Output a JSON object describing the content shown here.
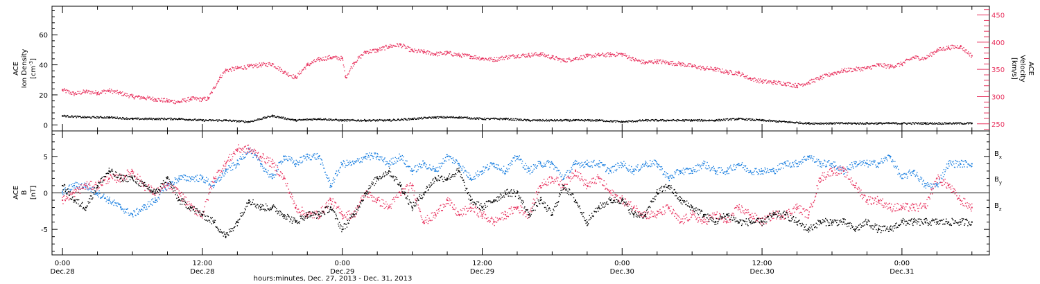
{
  "figure": {
    "xaxis_title": "hours:minutes, Dec. 27, 2013 - Dec. 31, 2013",
    "tick_times": [
      "0:00",
      "12:00",
      "0:00",
      "12:00",
      "0:00",
      "12:00",
      "0:00"
    ],
    "tick_dates": [
      "Dec.28",
      "Dec.28",
      "Dec.29",
      "Dec.29",
      "Dec.30",
      "Dec.30",
      "Dec.31"
    ]
  },
  "colors": {
    "black": "#000000",
    "red": "#e8335f",
    "blue": "#1a7fe0"
  },
  "chart_data": [
    {
      "type": "scatter",
      "panel": "top",
      "xlabel": "hours:minutes, Dec. 27, 2013 - Dec. 31, 2013",
      "x_unit": "hours since Dec.28 0:00",
      "xlim": [
        -0.9,
        79.5
      ],
      "xticks": [
        0,
        12,
        24,
        36,
        48,
        60,
        72
      ],
      "left_axis": {
        "label_line1": "ACE",
        "label_line2": "Ion Density",
        "label_line3": "[cm^-3]",
        "ylim": [
          -4,
          79
        ],
        "ticks": [
          0,
          20,
          40,
          60
        ]
      },
      "right_axis": {
        "label_line1": "ACE",
        "label_line2": "Velocity",
        "label_line3": "[km/s]",
        "ylim": [
          237,
          466
        ],
        "ticks": [
          250,
          300,
          350,
          400,
          450
        ]
      },
      "series": [
        {
          "name": "Velocity",
          "axis": "right",
          "color": "#e8335f",
          "x": [
            0,
            1,
            2,
            3,
            4,
            5,
            6,
            7,
            8,
            9,
            10,
            11,
            12,
            12.5,
            13.5,
            14,
            15,
            16,
            17,
            18,
            19,
            20,
            21,
            22,
            23,
            24,
            24.3,
            25,
            26,
            27,
            28,
            29,
            30,
            31,
            32,
            33,
            34,
            35,
            36,
            37,
            38,
            39,
            40,
            41,
            42,
            43,
            44,
            45,
            46,
            47,
            48,
            49,
            50,
            51,
            52,
            53,
            54,
            55,
            56,
            57,
            58,
            59,
            60,
            61,
            62,
            63,
            64,
            65,
            66,
            67,
            68,
            69,
            70,
            71,
            72,
            73,
            74,
            75,
            76,
            77,
            78
          ],
          "values": [
            312,
            305,
            309,
            307,
            311,
            306,
            300,
            298,
            295,
            292,
            290,
            296,
            295,
            296,
            335,
            348,
            352,
            355,
            358,
            360,
            345,
            335,
            358,
            368,
            372,
            370,
            335,
            362,
            382,
            385,
            392,
            395,
            384,
            382,
            378,
            380,
            376,
            374,
            370,
            368,
            372,
            375,
            376,
            378,
            372,
            366,
            370,
            374,
            376,
            377,
            378,
            368,
            362,
            365,
            362,
            360,
            356,
            352,
            350,
            345,
            343,
            333,
            328,
            326,
            324,
            320,
            326,
            334,
            342,
            348,
            350,
            352,
            358,
            355,
            360,
            372,
            370,
            385,
            390,
            392,
            375
          ]
        },
        {
          "name": "Ion Density",
          "axis": "left",
          "color": "#000000",
          "x": [
            0,
            2,
            4,
            6,
            8,
            10,
            12,
            14,
            16,
            18,
            20,
            22,
            24,
            26,
            28,
            30,
            32,
            34,
            36,
            38,
            40,
            42,
            44,
            46,
            48,
            50,
            52,
            54,
            56,
            58,
            60,
            62,
            64,
            66,
            68,
            70,
            72,
            74,
            76,
            78
          ],
          "values": [
            6,
            5,
            5,
            4,
            4,
            4,
            3,
            3,
            2,
            6,
            3,
            4,
            3,
            3,
            3,
            4,
            5,
            5,
            4,
            4,
            3,
            3,
            3,
            3,
            2,
            3,
            3,
            3,
            3,
            4,
            3,
            2,
            1,
            1,
            1,
            1,
            1,
            1,
            1,
            1
          ]
        }
      ]
    },
    {
      "type": "scatter",
      "panel": "bottom",
      "x_unit": "hours since Dec.28 0:00",
      "xlim": [
        -0.9,
        79.5
      ],
      "ylabel_line1": "ACE",
      "ylabel_line2": "B",
      "ylabel_line3": "[nT]",
      "ylim": [
        -8.5,
        8.5
      ],
      "yticks": [
        -5,
        0,
        5
      ],
      "zero_line": true,
      "series": [
        {
          "name": "B_x",
          "color": "#000000",
          "x": [
            0,
            1,
            2,
            3,
            4,
            5,
            6,
            7,
            8,
            9,
            10,
            11,
            12,
            13,
            14,
            15,
            16,
            17,
            18,
            19,
            20,
            21,
            22,
            23,
            24,
            25,
            26,
            27,
            28,
            29,
            30,
            31,
            32,
            33,
            34,
            35,
            36,
            37,
            38,
            39,
            40,
            41,
            42,
            43,
            44,
            45,
            46,
            47,
            48,
            49,
            50,
            51,
            52,
            53,
            54,
            55,
            56,
            57,
            58,
            59,
            60,
            61,
            62,
            63,
            64,
            65,
            66,
            67,
            68,
            69,
            70,
            71,
            72,
            73,
            74,
            75,
            76,
            77,
            78
          ],
          "values": [
            1,
            -1,
            -2,
            1,
            3,
            2,
            2,
            1,
            0,
            2,
            -1,
            -2,
            -3,
            -4,
            -6,
            -4,
            -1,
            -2,
            -2,
            -3,
            -4,
            -3,
            -3,
            -2,
            -5,
            -3,
            0,
            2,
            3,
            1,
            -2,
            0,
            2,
            2,
            3,
            -1,
            -2,
            -1,
            0,
            0,
            -3,
            -1,
            -3,
            1,
            -1,
            -4,
            -2,
            -1,
            -1,
            -3,
            -3,
            0,
            1,
            -1,
            -2,
            -3,
            -4,
            -3,
            -4,
            -4,
            -4,
            -3,
            -3,
            -4,
            -5,
            -4,
            -4,
            -4,
            -5,
            -4,
            -5,
            -5,
            -4,
            -4,
            -4,
            -4,
            -4,
            -4,
            -4
          ]
        },
        {
          "name": "B_y",
          "color": "#1a7fe0",
          "x": [
            0,
            1,
            2,
            3,
            4,
            5,
            6,
            7,
            8,
            9,
            10,
            11,
            12,
            13,
            14,
            15,
            16,
            17,
            18,
            19,
            20,
            21,
            22,
            23,
            24,
            25,
            26,
            27,
            28,
            29,
            30,
            31,
            32,
            33,
            34,
            35,
            36,
            37,
            38,
            39,
            40,
            41,
            42,
            43,
            44,
            45,
            46,
            47,
            48,
            49,
            50,
            51,
            52,
            53,
            54,
            55,
            56,
            57,
            58,
            59,
            60,
            61,
            62,
            63,
            64,
            65,
            66,
            67,
            68,
            69,
            70,
            71,
            72,
            73,
            74,
            75,
            76,
            77,
            78
          ],
          "values": [
            0,
            1,
            1,
            0,
            -1,
            -2,
            -3,
            -2,
            -1,
            1,
            2,
            2,
            2,
            1,
            3,
            4,
            6,
            4,
            2,
            5,
            4,
            5,
            5,
            1,
            4,
            4,
            5,
            5,
            4,
            5,
            3,
            4,
            3,
            5,
            4,
            2,
            3,
            4,
            3,
            5,
            3,
            4,
            4,
            2,
            4,
            4,
            4,
            3,
            4,
            3,
            4,
            4,
            2,
            3,
            3,
            4,
            3,
            3,
            4,
            3,
            3,
            3,
            4,
            4,
            5,
            4,
            4,
            3,
            4,
            4,
            4,
            5,
            2,
            3,
            1,
            1,
            4,
            4,
            4
          ]
        },
        {
          "name": "B_z",
          "color": "#e8335f",
          "x": [
            0,
            1,
            2,
            3,
            4,
            5,
            6,
            7,
            8,
            9,
            10,
            11,
            12,
            13,
            14,
            15,
            16,
            17,
            18,
            19,
            20,
            21,
            22,
            23,
            24,
            25,
            26,
            27,
            28,
            29,
            30,
            31,
            32,
            33,
            34,
            35,
            36,
            37,
            38,
            39,
            40,
            41,
            42,
            43,
            44,
            45,
            46,
            47,
            48,
            49,
            50,
            51,
            52,
            53,
            54,
            55,
            56,
            57,
            58,
            59,
            60,
            61,
            62,
            63,
            64,
            65,
            66,
            67,
            68,
            69,
            70,
            71,
            72,
            73,
            74,
            75,
            76,
            77,
            78
          ],
          "values": [
            -1,
            0,
            1,
            1,
            2,
            2,
            3,
            1,
            0,
            1,
            0,
            -2,
            -3,
            2,
            4,
            6,
            6,
            5,
            4,
            2,
            -2,
            -3,
            -3,
            -1,
            -3,
            -3,
            0,
            -1,
            -2,
            0,
            1,
            -4,
            -3,
            -1,
            -3,
            -2,
            -3,
            -4,
            -3,
            -2,
            -3,
            1,
            2,
            1,
            3,
            1,
            2,
            0,
            -1,
            -2,
            -3,
            -3,
            -2,
            -4,
            -3,
            -4,
            -3,
            -4,
            -2,
            -3,
            -4,
            -3,
            -3,
            -2,
            -3,
            2,
            3,
            3,
            1,
            -1,
            -1,
            -2,
            -2,
            -2,
            -2,
            2,
            1,
            -1,
            -2
          ]
        }
      ],
      "legend": [
        {
          "base": "B",
          "sub": "x",
          "color": "#000000"
        },
        {
          "base": "B",
          "sub": "y",
          "color": "#1a7fe0"
        },
        {
          "base": "B",
          "sub": "z",
          "color": "#e8335f"
        }
      ]
    }
  ]
}
